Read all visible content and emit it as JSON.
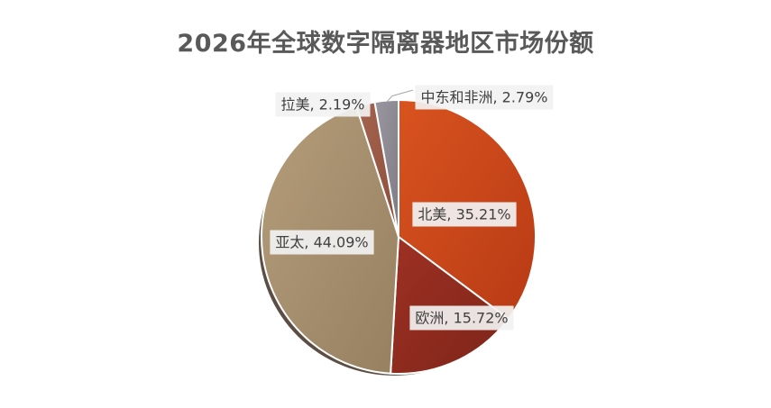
{
  "chart_data": {
    "type": "pie",
    "title": "2026年全球数字隔离器地区市场份额",
    "categories": [
      "北美",
      "欧洲",
      "亚太",
      "拉美",
      "中东和非洲"
    ],
    "values": [
      35.21,
      15.72,
      44.09,
      2.19,
      2.79
    ],
    "unit": "%",
    "labels": [
      "北美, 35.21%",
      "欧洲, 15.72%",
      "亚太, 44.09%",
      "拉美, 2.19%",
      "中东和非洲, 2.79%"
    ],
    "colors": [
      "#C8461B",
      "#8E2B1F",
      "#A89070",
      "#9A5A48",
      "#8E8A93"
    ],
    "start_angle": "12 o'clock, clockwise",
    "legend": "none"
  }
}
